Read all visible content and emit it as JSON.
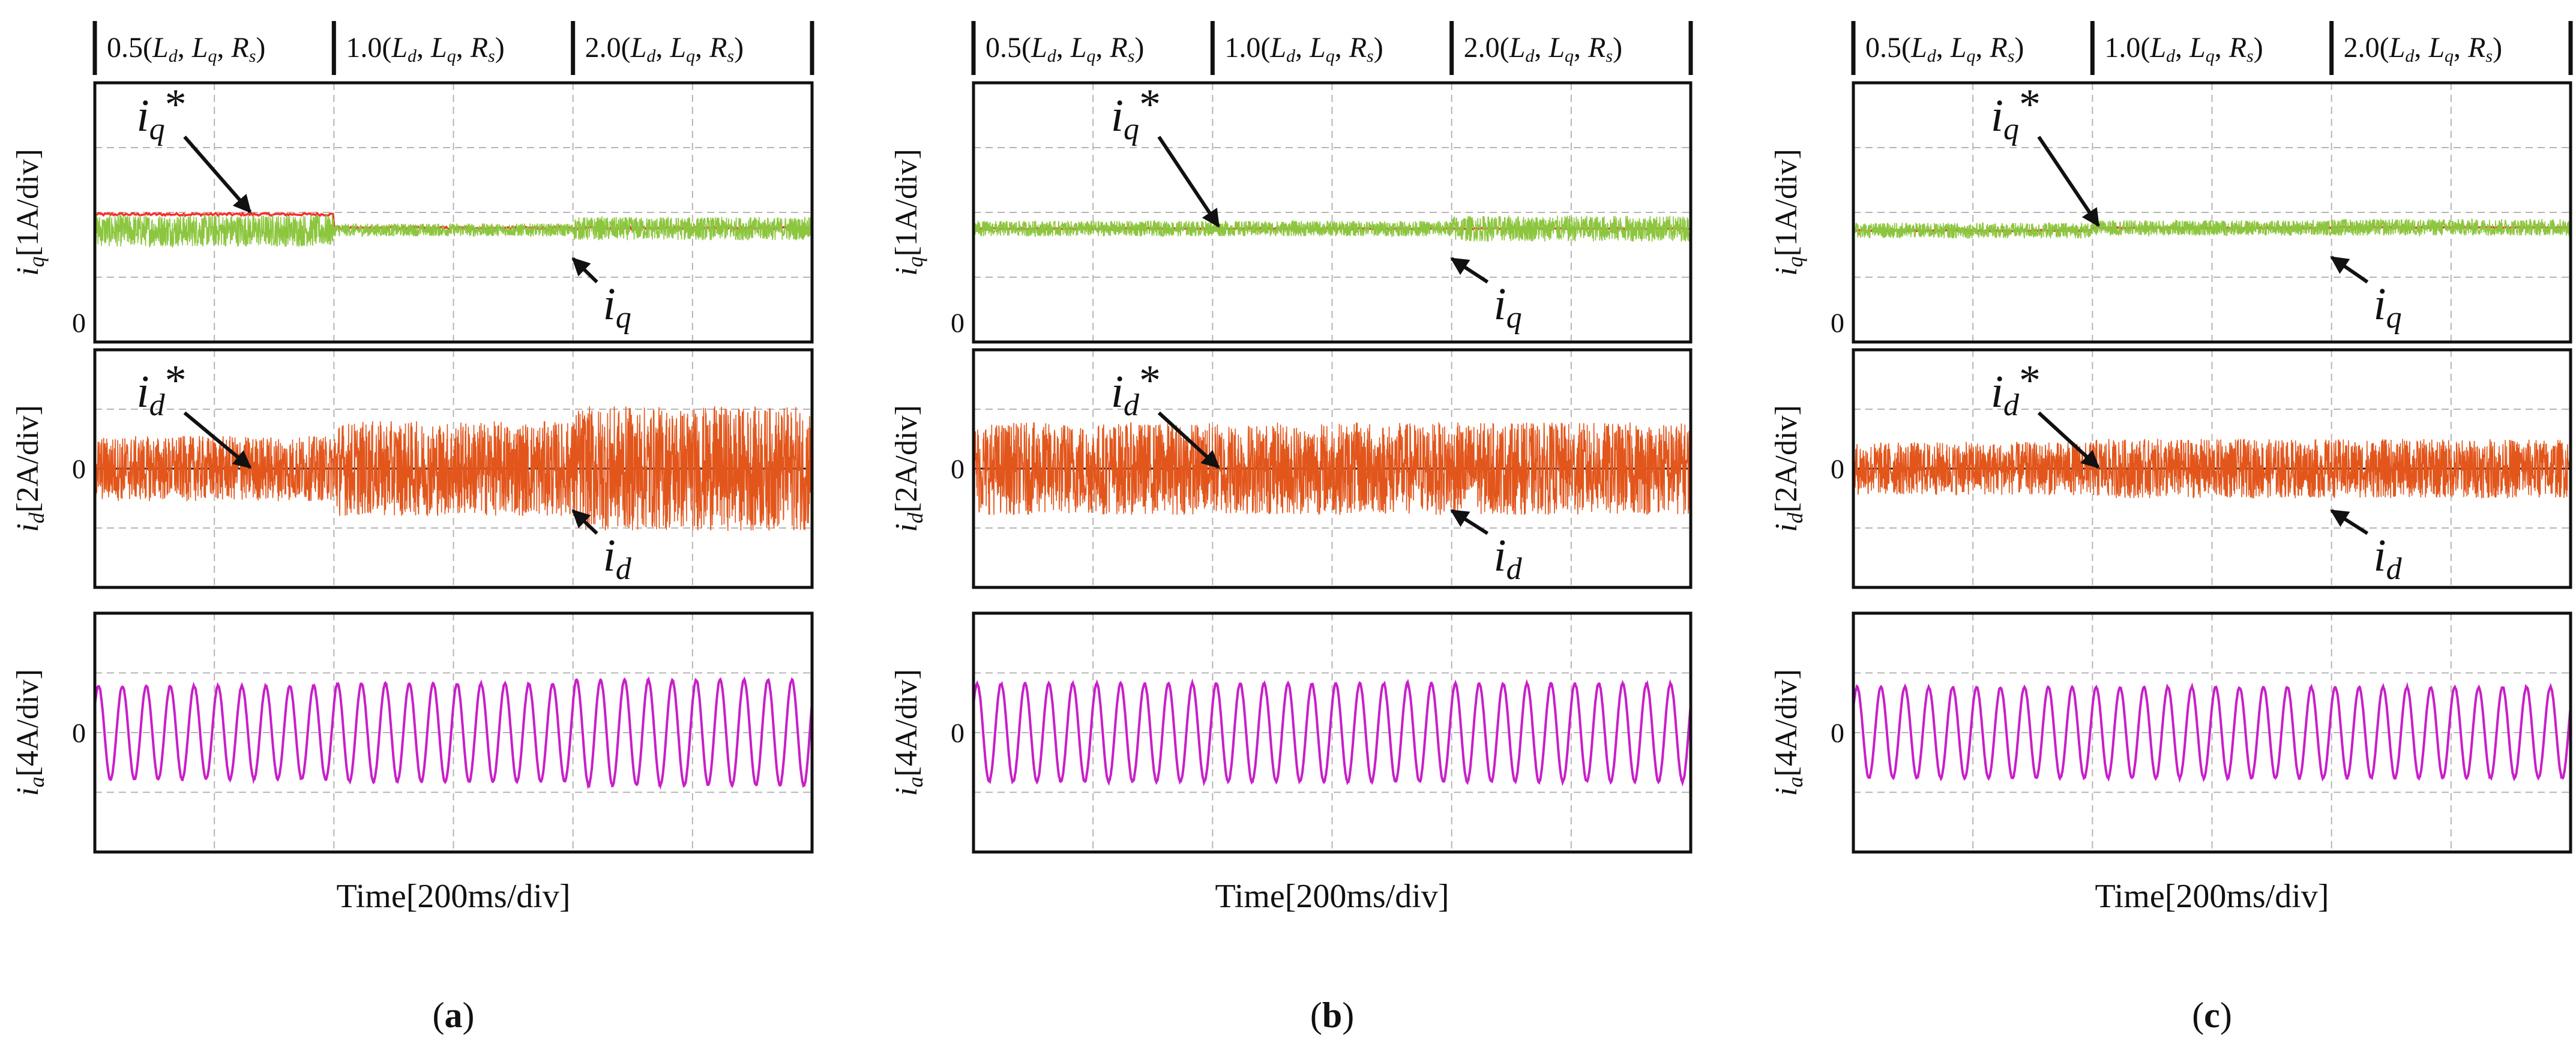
{
  "figure": {
    "x_axis_label": "Time[200ms/div]",
    "captions": [
      "(a)",
      "(b)",
      "(c)"
    ],
    "panel_row_labels": [
      {
        "sym": "i",
        "sub": "q",
        "unit": "[1A/div]"
      },
      {
        "sym": "i",
        "sub": "d",
        "unit": "[2A/div]"
      },
      {
        "sym": "i",
        "sub": "a",
        "unit": "[4A/div]"
      }
    ],
    "zero_label": "0"
  },
  "chart_data": [
    {
      "type": "line",
      "id": "a",
      "caption": "(a)",
      "xlabel": "Time[200ms/div]",
      "x_per_div_ms": 200,
      "x_divisions": 6,
      "segments": [
        "0.5(Ld, Lq, Rs)",
        "1.0(Ld, Lq, Rs)",
        "2.0(Ld, Lq, Rs)"
      ],
      "segment_boundaries_div": [
        2,
        4
      ],
      "subplots": [
        {
          "ylabel": "iq[1A/div]",
          "y_per_div": 1,
          "y_divisions": 4,
          "zero_div": 0.3,
          "series": [
            {
              "name": "iq*",
              "color": "#ff2a2a",
              "levels_div": [
                1.67,
                1.46,
                1.46
              ],
              "noise_div": [
                0.02,
                0.02,
                0.02
              ]
            },
            {
              "name": "iq",
              "color": "#8cc63f",
              "levels_div": [
                1.42,
                1.43,
                1.45
              ],
              "noise_div": [
                0.25,
                0.1,
                0.18
              ]
            }
          ],
          "annotations": [
            {
              "text": "iq*",
              "points_to": "iq*"
            },
            {
              "text": "iq",
              "points_to": "iq"
            }
          ]
        },
        {
          "ylabel": "id[2A/div]",
          "y_per_div": 2,
          "y_divisions": 4,
          "zero_div": 2.0,
          "series": [
            {
              "name": "id*",
              "color": "#111111",
              "levels_div": [
                0,
                0,
                0
              ],
              "noise_div": [
                0,
                0,
                0
              ]
            },
            {
              "name": "id",
              "color": "#e2561c",
              "levels_div": [
                0,
                0,
                0
              ],
              "noise_div": [
                0.55,
                0.8,
                1.05
              ]
            }
          ],
          "annotations": [
            {
              "text": "id*",
              "points_to": "id*"
            },
            {
              "text": "id",
              "points_to": "id"
            }
          ]
        },
        {
          "ylabel": "ia[4A/div]",
          "y_per_div": 4,
          "y_divisions": 4,
          "zero_div": 2.0,
          "series": [
            {
              "name": "ia",
              "color": "#c81fc8",
              "amplitude_div": [
                0.78,
                0.82,
                0.88
              ],
              "cycles_per_div": 5
            }
          ]
        }
      ]
    },
    {
      "type": "line",
      "id": "b",
      "caption": "(b)",
      "xlabel": "Time[200ms/div]",
      "x_per_div_ms": 200,
      "x_divisions": 6,
      "segments": [
        "0.5(Ld, Lq, Rs)",
        "1.0(Ld, Lq, Rs)",
        "2.0(Ld, Lq, Rs)"
      ],
      "segment_boundaries_div": [
        2,
        4
      ],
      "subplots": [
        {
          "ylabel": "iq[1A/div]",
          "y_per_div": 1,
          "y_divisions": 4,
          "zero_div": 0.3,
          "series": [
            {
              "name": "iq*",
              "color": "#ff2a2a",
              "levels_div": [
                1.45,
                1.45,
                1.45
              ],
              "noise_div": [
                0.01,
                0.01,
                0.01
              ]
            },
            {
              "name": "iq",
              "color": "#8cc63f",
              "levels_div": [
                1.45,
                1.45,
                1.45
              ],
              "noise_div": [
                0.12,
                0.12,
                0.2
              ]
            }
          ],
          "annotations": [
            {
              "text": "iq*",
              "points_to": "iq*"
            },
            {
              "text": "iq",
              "points_to": "iq"
            }
          ]
        },
        {
          "ylabel": "id[2A/div]",
          "y_per_div": 2,
          "y_divisions": 4,
          "zero_div": 2.0,
          "series": [
            {
              "name": "id*",
              "color": "#111111",
              "levels_div": [
                0,
                0,
                0
              ],
              "noise_div": [
                0,
                0,
                0
              ]
            },
            {
              "name": "id",
              "color": "#e2561c",
              "levels_div": [
                0,
                0,
                0
              ],
              "noise_div": [
                0.78,
                0.78,
                0.78
              ]
            }
          ],
          "annotations": [
            {
              "text": "id*",
              "points_to": "id*"
            },
            {
              "text": "id",
              "points_to": "id"
            }
          ]
        },
        {
          "ylabel": "ia[4A/div]",
          "y_per_div": 4,
          "y_divisions": 4,
          "zero_div": 2.0,
          "series": [
            {
              "name": "ia",
              "color": "#c81fc8",
              "amplitude_div": [
                0.82,
                0.82,
                0.82
              ],
              "cycles_per_div": 5
            }
          ]
        }
      ]
    },
    {
      "type": "line",
      "id": "c",
      "caption": "(c)",
      "xlabel": "Time[200ms/div]",
      "x_per_div_ms": 200,
      "x_divisions": 6,
      "segments": [
        "0.5(Ld, Lq, Rs)",
        "1.0(Ld, Lq, Rs)",
        "2.0(Ld, Lq, Rs)"
      ],
      "segment_boundaries_div": [
        2,
        4
      ],
      "subplots": [
        {
          "ylabel": "iq[1A/div]",
          "y_per_div": 1,
          "y_divisions": 4,
          "zero_div": 0.3,
          "series": [
            {
              "name": "iq*",
              "color": "#ff2a2a",
              "levels_div": [
                1.42,
                1.46,
                1.47
              ],
              "noise_div": [
                0.01,
                0.01,
                0.01
              ]
            },
            {
              "name": "iq",
              "color": "#8cc63f",
              "levels_div": [
                1.42,
                1.46,
                1.47
              ],
              "noise_div": [
                0.12,
                0.12,
                0.13
              ]
            }
          ],
          "annotations": [
            {
              "text": "iq*",
              "points_to": "iq*"
            },
            {
              "text": "iq",
              "points_to": "iq"
            }
          ]
        },
        {
          "ylabel": "id[2A/div]",
          "y_per_div": 2,
          "y_divisions": 4,
          "zero_div": 2.0,
          "series": [
            {
              "name": "id*",
              "color": "#111111",
              "levels_div": [
                0,
                0,
                0
              ],
              "noise_div": [
                0,
                0,
                0
              ]
            },
            {
              "name": "id",
              "color": "#e2561c",
              "levels_div": [
                0,
                0,
                0
              ],
              "noise_div": [
                0.45,
                0.5,
                0.5
              ]
            }
          ],
          "annotations": [
            {
              "text": "id*",
              "points_to": "id*"
            },
            {
              "text": "id",
              "points_to": "id"
            }
          ]
        },
        {
          "ylabel": "ia[4A/div]",
          "y_per_div": 4,
          "y_divisions": 4,
          "zero_div": 2.0,
          "series": [
            {
              "name": "ia",
              "color": "#c81fc8",
              "amplitude_div": [
                0.76,
                0.76,
                0.76
              ],
              "cycles_per_div": 5
            }
          ]
        }
      ]
    }
  ]
}
